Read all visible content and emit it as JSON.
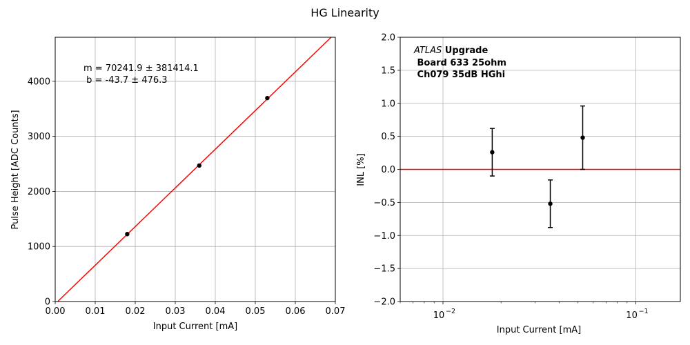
{
  "figure": {
    "title": "HG Linearity"
  },
  "chart_data": [
    {
      "type": "scatter",
      "xlabel": "Input Current [mA]",
      "ylabel": "Pulse Height [ADC Counts]",
      "xlim": [
        0,
        0.07
      ],
      "ylim": [
        0,
        4800
      ],
      "x_ticks": [
        0.0,
        0.01,
        0.02,
        0.03,
        0.04,
        0.05,
        0.06,
        0.07
      ],
      "x_tick_labels": [
        "0.00",
        "0.01",
        "0.02",
        "0.03",
        "0.04",
        "0.05",
        "0.06",
        "0.07"
      ],
      "y_ticks": [
        0,
        1000,
        2000,
        3000,
        4000
      ],
      "y_tick_labels": [
        "0",
        "1000",
        "2000",
        "3000",
        "4000"
      ],
      "grid": true,
      "points": [
        {
          "x": 0.018,
          "y": 1225
        },
        {
          "x": 0.036,
          "y": 2470
        },
        {
          "x": 0.053,
          "y": 3695
        }
      ],
      "fit_line": {
        "slope": 70241.9,
        "intercept": -43.7,
        "color": "#ff0000"
      },
      "annotation": {
        "line1": "m = 70241.9 ± 381414.1",
        "line2": " b = -43.7 ± 476.3"
      },
      "marker_color": "#000000"
    },
    {
      "type": "scatter",
      "xlabel": "Input Current [mA]",
      "ylabel": "INL [%]",
      "x_scale": "log",
      "xlim": [
        0.006,
        0.17
      ],
      "ylim": [
        -2.0,
        2.0
      ],
      "x_ticks": [
        0.01,
        0.1
      ],
      "x_tick_labels": [
        {
          "base": "10",
          "exp": "−2"
        },
        {
          "base": "10",
          "exp": "−1"
        }
      ],
      "y_ticks": [
        -2.0,
        -1.5,
        -1.0,
        -0.5,
        0.0,
        0.5,
        1.0,
        1.5,
        2.0
      ],
      "y_tick_labels": [
        "−2.0",
        "−1.5",
        "−1.0",
        "−0.5",
        "0.0",
        "0.5",
        "1.0",
        "1.5",
        "2.0"
      ],
      "grid": true,
      "points": [
        {
          "x": 0.018,
          "y": 0.26,
          "yerr": 0.36
        },
        {
          "x": 0.036,
          "y": -0.52,
          "yerr": 0.36
        },
        {
          "x": 0.053,
          "y": 0.48,
          "yerr": 0.48
        }
      ],
      "reference_line": {
        "y": 0.0,
        "color": "#ff0000"
      },
      "annotation": {
        "italic": "ATLAS",
        "bold1": " Upgrade",
        "line2": " Board 633 25ohm",
        "line3": " Ch079 35dB HGhi"
      },
      "marker_color": "#000000"
    }
  ]
}
